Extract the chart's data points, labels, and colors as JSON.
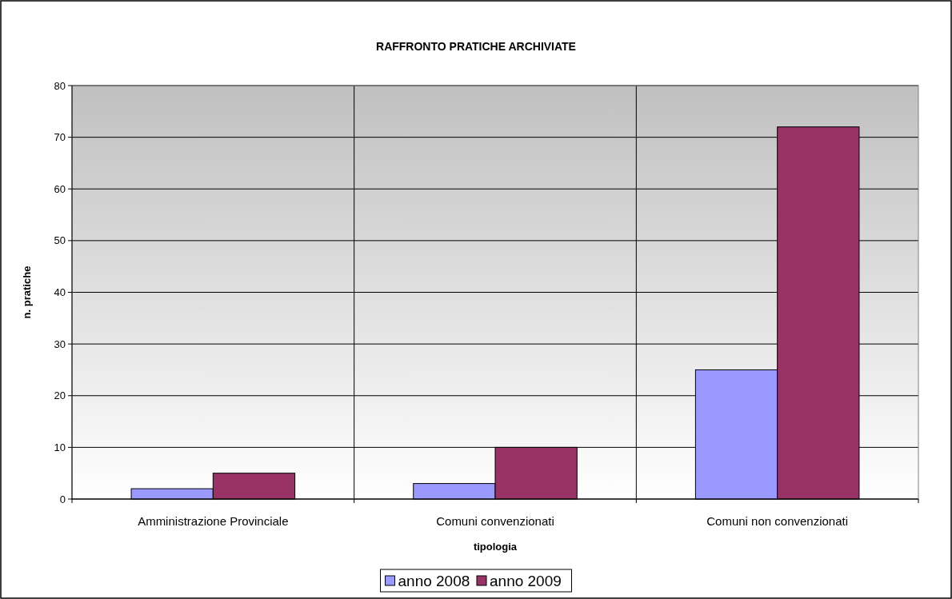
{
  "chart_data": {
    "type": "bar",
    "title": "RAFFRONTO PRATICHE ARCHIVIATE",
    "xlabel": "tipologia",
    "ylabel": "n. pratiche",
    "categories": [
      "Amministrazione Provinciale",
      "Comuni convenzionati",
      "Comuni non convenzionati"
    ],
    "series": [
      {
        "name": "anno 2008",
        "color": "#9999ff",
        "values": [
          2,
          3,
          25
        ]
      },
      {
        "name": "anno 2009",
        "color": "#993366",
        "values": [
          5,
          10,
          72
        ]
      }
    ],
    "ylim": [
      0,
      80
    ],
    "yticks": [
      0,
      10,
      20,
      30,
      40,
      50,
      60,
      70,
      80
    ],
    "grid": true,
    "legend": "bottom"
  }
}
